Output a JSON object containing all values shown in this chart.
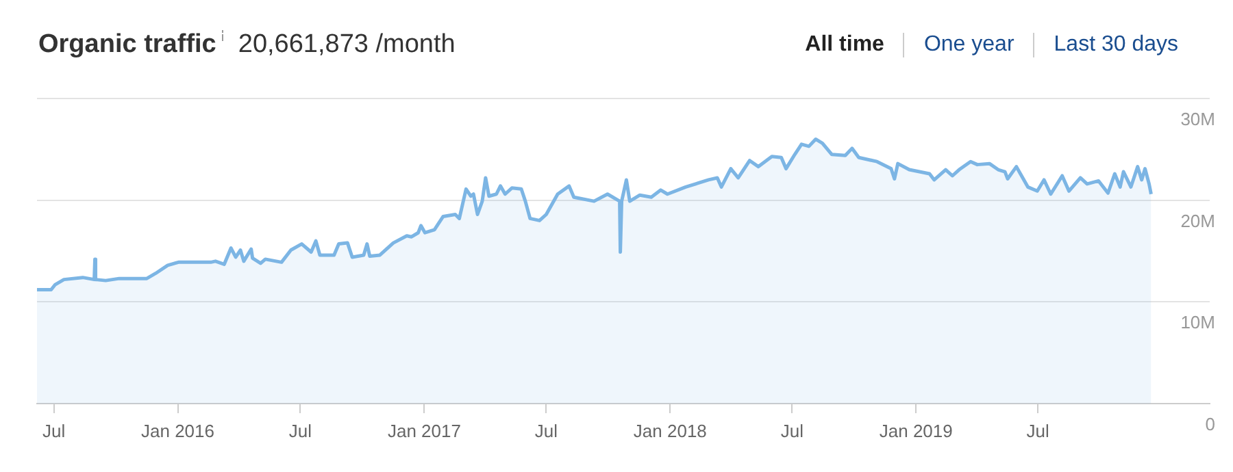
{
  "chart_data": {
    "type": "area",
    "title": "Organic traffic",
    "subtitle": "20,661,873 /month",
    "annotations": [
      "All time",
      "One year",
      "Last 30 days"
    ],
    "x": [
      "2015-06-06",
      "2015-06-27",
      "2015-07-03",
      "2015-07-16",
      "2015-08-13",
      "2015-08-30",
      "2015-08-31",
      "2015-09-01",
      "2015-09-16",
      "2015-10-06",
      "2015-11-16",
      "2015-11-29",
      "2015-12-17",
      "2016-01-02",
      "2016-02-19",
      "2016-02-26",
      "2016-03-10",
      "2016-03-20",
      "2016-03-27",
      "2016-04-03",
      "2016-04-08",
      "2016-04-19",
      "2016-04-21",
      "2016-05-03",
      "2016-05-10",
      "2016-06-03",
      "2016-06-17",
      "2016-07-03",
      "2016-07-17",
      "2016-07-24",
      "2016-07-30",
      "2016-08-20",
      "2016-08-27",
      "2016-09-09",
      "2016-09-16",
      "2016-10-03",
      "2016-10-08",
      "2016-10-12",
      "2016-10-27",
      "2016-11-16",
      "2016-12-06",
      "2016-12-13",
      "2016-12-23",
      "2016-12-27",
      "2017-01-02",
      "2017-01-16",
      "2017-01-19",
      "2017-01-29",
      "2017-02-16",
      "2017-02-22",
      "2017-03-04",
      "2017-03-11",
      "2017-03-15",
      "2017-03-21",
      "2017-03-28",
      "2017-04-02",
      "2017-04-07",
      "2017-04-18",
      "2017-04-24",
      "2017-05-01",
      "2017-05-11",
      "2017-05-25",
      "2017-05-31",
      "2017-06-07",
      "2017-06-21",
      "2017-07-01",
      "2017-07-18",
      "2017-08-04",
      "2017-08-11",
      "2017-09-10",
      "2017-09-30",
      "2017-10-18",
      "2017-10-19",
      "2017-10-21",
      "2017-10-28",
      "2017-11-02",
      "2017-11-17",
      "2017-12-04",
      "2017-12-18",
      "2017-12-28",
      "2018-01-24",
      "2018-02-27",
      "2018-03-12",
      "2018-03-18",
      "2018-04-01",
      "2018-04-12",
      "2018-04-29",
      "2018-05-12",
      "2018-06-01",
      "2018-06-15",
      "2018-06-22",
      "2018-07-05",
      "2018-07-15",
      "2018-07-26",
      "2018-08-05",
      "2018-08-15",
      "2018-08-29",
      "2018-09-18",
      "2018-09-28",
      "2018-10-08",
      "2018-11-04",
      "2018-11-25",
      "2018-11-30",
      "2018-12-05",
      "2018-12-22",
      "2019-01-21",
      "2019-01-28",
      "2019-02-14",
      "2019-02-24",
      "2019-03-06",
      "2019-03-23",
      "2019-04-02",
      "2019-04-20",
      "2019-05-03",
      "2019-05-13",
      "2019-05-17",
      "2019-05-30",
      "2019-06-16",
      "2019-06-30",
      "2019-07-10",
      "2019-07-20",
      "2019-08-06",
      "2019-08-16",
      "2019-09-02",
      "2019-09-12",
      "2019-09-29",
      "2019-10-13",
      "2019-10-23",
      "2019-10-31",
      "2019-11-05",
      "2019-11-16",
      "2019-11-26",
      "2019-12-02",
      "2019-12-07",
      "2019-12-13",
      "2019-12-16"
    ],
    "values": [
      11.2,
      11.2,
      11.7,
      12.2,
      12.4,
      12.2,
      14.2,
      12.2,
      12.1,
      12.3,
      12.3,
      12.8,
      13.6,
      13.9,
      13.9,
      14.0,
      13.7,
      15.3,
      14.4,
      15.1,
      14.0,
      15.2,
      14.3,
      13.8,
      14.2,
      13.9,
      15.1,
      15.7,
      14.9,
      16.0,
      14.6,
      14.6,
      15.7,
      15.8,
      14.4,
      14.6,
      15.7,
      14.5,
      14.6,
      15.8,
      16.5,
      16.4,
      16.8,
      17.5,
      16.8,
      17.1,
      17.4,
      18.4,
      18.6,
      18.2,
      21.1,
      20.4,
      20.6,
      18.6,
      19.9,
      22.2,
      20.4,
      20.6,
      21.4,
      20.6,
      21.2,
      21.1,
      19.9,
      18.2,
      18.0,
      18.6,
      20.6,
      21.4,
      20.3,
      19.9,
      20.6,
      19.9,
      14.9,
      19.9,
      22.0,
      19.9,
      20.5,
      20.3,
      21.0,
      20.6,
      21.3,
      22.0,
      22.2,
      21.3,
      23.1,
      22.2,
      23.9,
      23.3,
      24.3,
      24.2,
      23.1,
      24.5,
      25.5,
      25.3,
      26.0,
      25.6,
      24.5,
      24.4,
      25.1,
      24.2,
      23.8,
      23.1,
      22.1,
      23.6,
      23.0,
      22.6,
      22.0,
      23.0,
      22.4,
      23.0,
      23.8,
      23.5,
      23.6,
      23.0,
      22.8,
      22.1,
      23.3,
      21.3,
      20.9,
      22.0,
      20.6,
      22.4,
      20.9,
      22.2,
      21.6,
      21.9,
      20.7,
      22.6,
      21.3,
      22.8,
      21.3,
      23.3,
      22.0,
      23.1,
      21.6,
      20.6
    ],
    "color": "#7cb5e4",
    "xlim": [
      "2015-06-06",
      "2020-03-12"
    ],
    "xticks": [
      {
        "value": "2015-07-01",
        "label": "Jul"
      },
      {
        "value": "2016-01-01",
        "label": "Jan 2016"
      },
      {
        "value": "2016-07-01",
        "label": "Jul"
      },
      {
        "value": "2017-01-01",
        "label": "Jan 2017"
      },
      {
        "value": "2017-07-01",
        "label": "Jul"
      },
      {
        "value": "2018-01-01",
        "label": "Jan 2018"
      },
      {
        "value": "2018-07-01",
        "label": "Jul"
      },
      {
        "value": "2019-01-01",
        "label": "Jan 2019"
      },
      {
        "value": "2019-07-01",
        "label": "Jul"
      }
    ],
    "ylim": [
      0,
      30
    ],
    "yticks": [
      {
        "value": 0,
        "label": "0"
      },
      {
        "value": 10,
        "label": "10M"
      },
      {
        "value": 20,
        "label": "20M"
      },
      {
        "value": 30,
        "label": "30M"
      }
    ],
    "grid": "y",
    "legend": false,
    "marker": "none",
    "line_style": "solid"
  }
}
